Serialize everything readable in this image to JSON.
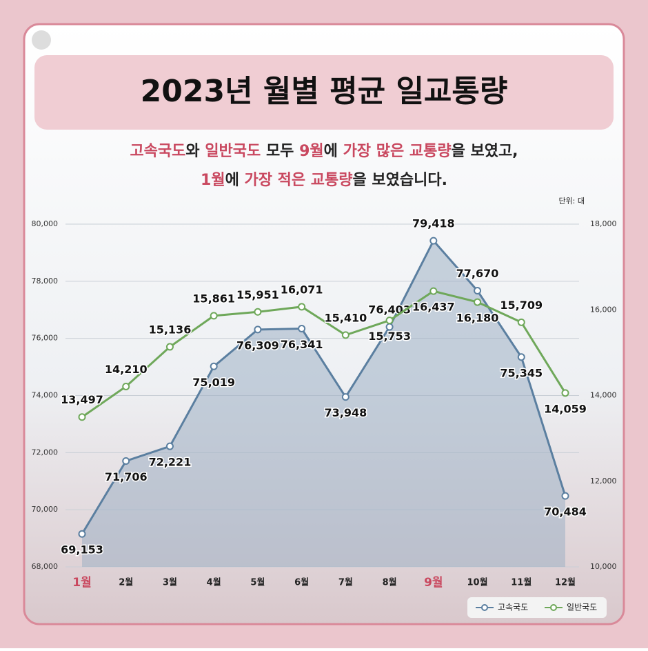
{
  "chart_data": {
    "type": "line",
    "title": "2023년 월별 평균 일교통량",
    "subtitle": [
      [
        {
          "text": "고속국도",
          "color": "#c9485f"
        },
        {
          "text": "와 ",
          "color": "#222222"
        },
        {
          "text": "일반국도",
          "color": "#c9485f"
        },
        {
          "text": " 모두 ",
          "color": "#222222"
        },
        {
          "text": "9월",
          "color": "#c9485f"
        },
        {
          "text": "에 ",
          "color": "#222222"
        },
        {
          "text": "가장 많은 교통량",
          "color": "#c9485f"
        },
        {
          "text": "을 보였고,",
          "color": "#222222"
        }
      ],
      [
        {
          "text": "1월",
          "color": "#c9485f"
        },
        {
          "text": "에 ",
          "color": "#222222"
        },
        {
          "text": "가장 적은 교통량",
          "color": "#c9485f"
        },
        {
          "text": "을 보였습니다.",
          "color": "#222222"
        }
      ]
    ],
    "unit": "단위: 대",
    "categories": [
      "1월",
      "2월",
      "3월",
      "4월",
      "5월",
      "6월",
      "7월",
      "8월",
      "9월",
      "10월",
      "11월",
      "12월"
    ],
    "category_colors": [
      "#c9485f",
      "#222222",
      "#222222",
      "#222222",
      "#222222",
      "#222222",
      "#222222",
      "#222222",
      "#c9485f",
      "#222222",
      "#222222",
      "#222222"
    ],
    "series": [
      {
        "name": "고속국도",
        "color": "#5b7fa0",
        "axis": "y",
        "values": [
          69153,
          71706,
          72221,
          75019,
          76309,
          76341,
          73948,
          76403,
          79418,
          77670,
          75345,
          70484
        ],
        "value_labels": [
          "69,153",
          "71,706",
          "72,221",
          "75,019",
          "76,309",
          "76,341",
          "73,948",
          "76,403",
          "79,418",
          "77,670",
          "75,345",
          "70,484"
        ]
      },
      {
        "name": "일반국도",
        "color": "#6fa85a",
        "axis": "y2",
        "values": [
          13497,
          14210,
          15136,
          15861,
          15951,
          16071,
          15410,
          15753,
          16437,
          16180,
          15709,
          14059
        ],
        "value_labels": [
          "13,497",
          "14,210",
          "15,136",
          "15,861",
          "15,951",
          "16,071",
          "15,410",
          "15,753",
          "16,437",
          "16,180",
          "15,709",
          "14,059"
        ]
      }
    ],
    "ylim": [
      68000,
      80000
    ],
    "yticks": [
      {
        "value": 68000,
        "label": "68,000"
      },
      {
        "value": 70000,
        "label": "70,000"
      },
      {
        "value": 72000,
        "label": "72,000"
      },
      {
        "value": 74000,
        "label": "74,000"
      },
      {
        "value": 76000,
        "label": "76,000"
      },
      {
        "value": 78000,
        "label": "78,000"
      },
      {
        "value": 80000,
        "label": "80,000"
      }
    ],
    "y2lim": [
      10000,
      18000
    ],
    "y2ticks": [
      {
        "value": 10000,
        "label": "10,000"
      },
      {
        "value": 12000,
        "label": "12,000"
      },
      {
        "value": 14000,
        "label": "14,000"
      },
      {
        "value": 16000,
        "label": "16,000"
      },
      {
        "value": 18000,
        "label": "18,000"
      }
    ],
    "grid": true,
    "legend": "lower right"
  }
}
